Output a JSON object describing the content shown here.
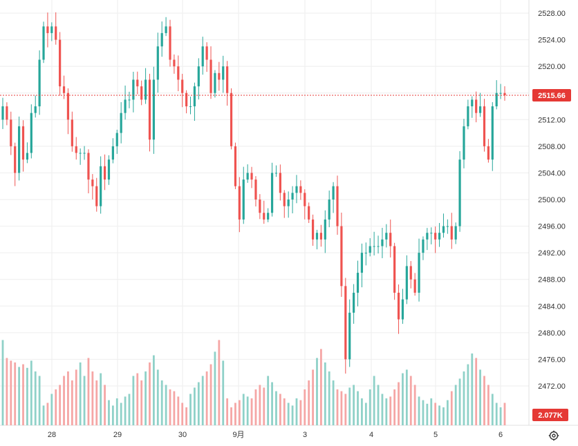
{
  "chart_data": {
    "type": "candlestick",
    "y_axis": {
      "min": 2468,
      "max": 2530,
      "ticks": [
        "2528.00",
        "2524.00",
        "2520.00",
        "2516.00",
        "2512.00",
        "2508.00",
        "2504.00",
        "2500.00",
        "2496.00",
        "2492.00",
        "2488.00",
        "2484.00",
        "2480.00",
        "2476.00",
        "2472.00"
      ],
      "tick_values": [
        2528,
        2524,
        2520,
        2516,
        2512,
        2508,
        2504,
        2500,
        2496,
        2492,
        2488,
        2484,
        2480,
        2476,
        2472
      ]
    },
    "x_axis": {
      "labels": [
        "28",
        "29",
        "30",
        "9月",
        "3",
        "4",
        "5",
        "6"
      ]
    },
    "last_price": 2515.66,
    "last_price_label": "2515.66",
    "volume_label": "2.077K",
    "grid": true,
    "colors": {
      "up": "#26a69a",
      "down": "#ef5350",
      "up_vol": "#8fd1c8",
      "down_vol": "#f5a6a5",
      "price_line": "#e53935",
      "grid": "#eeeeee"
    },
    "closes": [
      2514,
      2512,
      2508,
      2504,
      2511,
      2506,
      2507,
      2513,
      2514,
      2521,
      2526,
      2525,
      2526,
      2524,
      2517,
      2516,
      2512,
      2508,
      2507,
      2507,
      2507,
      2503,
      2502,
      2499,
      2505,
      2503,
      2506,
      2508,
      2510,
      2513,
      2515,
      2515,
      2518,
      2517,
      2515,
      2518,
      2509,
      2518,
      2523,
      2525,
      2526,
      2521,
      2520,
      2518,
      2516,
      2514,
      2514,
      2517,
      2520,
      2523,
      2521,
      2516,
      2519,
      2518,
      2520,
      2516,
      2508,
      2502,
      2497,
      2503,
      2504,
      2503,
      2500,
      2498,
      2497,
      2498,
      2504,
      2504,
      2501,
      2499,
      2500,
      2501,
      2502,
      2501,
      2499,
      2497,
      2494,
      2495,
      2494,
      2497,
      2500,
      2502,
      2496,
      2487,
      2476,
      2483,
      2486,
      2489,
      2492,
      2492,
      2493,
      2493,
      2493,
      2494,
      2495,
      2493,
      2486,
      2482,
      2485,
      2490,
      2488,
      2486,
      2492,
      2494,
      2495,
      2495,
      2494,
      2495,
      2496,
      2496,
      2494,
      2496,
      2506,
      2511,
      2514,
      2515,
      2513,
      2514,
      2508,
      2506,
      2514,
      2516,
      2516,
      2515.66
    ],
    "volumes": [
      0.95,
      0.75,
      0.72,
      0.7,
      0.65,
      0.68,
      0.64,
      0.72,
      0.6,
      0.55,
      0.22,
      0.25,
      0.35,
      0.4,
      0.45,
      0.55,
      0.6,
      0.5,
      0.62,
      0.7,
      0.55,
      0.75,
      0.6,
      0.5,
      0.58,
      0.45,
      0.28,
      0.22,
      0.3,
      0.25,
      0.32,
      0.35,
      0.55,
      0.58,
      0.5,
      0.6,
      0.7,
      0.78,
      0.62,
      0.5,
      0.45,
      0.4,
      0.38,
      0.32,
      0.25,
      0.2,
      0.35,
      0.42,
      0.48,
      0.55,
      0.6,
      0.68,
      0.82,
      0.95,
      0.72,
      0.3,
      0.2,
      0.25,
      0.28,
      0.35,
      0.32,
      0.3,
      0.4,
      0.45,
      0.42,
      0.55,
      0.48,
      0.38,
      0.35,
      0.3,
      0.25,
      0.22,
      0.3,
      0.28,
      0.4,
      0.5,
      0.62,
      0.75,
      0.85,
      0.7,
      0.6,
      0.5,
      0.4,
      0.38,
      0.35,
      0.42,
      0.45,
      0.38,
      0.3,
      0.25,
      0.4,
      0.55,
      0.45,
      0.35,
      0.3,
      0.32,
      0.4,
      0.48,
      0.58,
      0.62,
      0.55,
      0.45,
      0.32,
      0.28,
      0.24,
      0.3,
      0.25,
      0.22,
      0.2,
      0.28,
      0.38,
      0.45,
      0.52,
      0.6,
      0.68,
      0.8,
      0.75,
      0.62,
      0.55,
      0.45,
      0.35,
      0.25,
      0.2,
      0.25
    ]
  },
  "ui": {
    "settings_icon": "gear-icon"
  }
}
